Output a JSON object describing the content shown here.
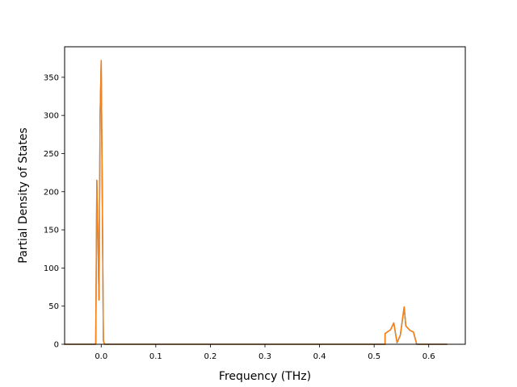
{
  "chart_data": {
    "type": "line",
    "title": "",
    "xlabel": "Frequency (THz)",
    "ylabel": "Partial Density of States",
    "xlim": [
      -0.067,
      0.667
    ],
    "ylim": [
      0,
      390
    ],
    "xticks": [
      0.0,
      0.1,
      0.2,
      0.3,
      0.4,
      0.5,
      0.6
    ],
    "xtick_labels": [
      "0.0",
      "0.1",
      "0.2",
      "0.3",
      "0.4",
      "0.5",
      "0.6"
    ],
    "yticks": [
      0,
      50,
      100,
      150,
      200,
      250,
      300,
      350
    ],
    "ytick_labels": [
      "0",
      "50",
      "100",
      "150",
      "200",
      "250",
      "300",
      "350"
    ],
    "grid": false,
    "legend": "none",
    "series": [
      {
        "color": "#1f77b4",
        "x": [
          -0.068,
          -0.01,
          -0.008,
          -0.004,
          -0.002,
          0.0,
          0.002,
          0.004,
          0.006,
          0.008,
          0.52,
          0.52,
          0.53,
          0.536,
          0.542,
          0.548,
          0.555,
          0.558,
          0.566,
          0.572,
          0.578,
          0.58,
          0.634
        ],
        "y": [
          0,
          0,
          215,
          58,
          300,
          372,
          190,
          5,
          0,
          0,
          0,
          14,
          19,
          28,
          2,
          12,
          49,
          24,
          18,
          16,
          0,
          0,
          0
        ]
      },
      {
        "color": "#ff7f0e",
        "x": [
          -0.068,
          -0.01,
          -0.008,
          -0.004,
          -0.002,
          0.0,
          0.002,
          0.004,
          0.006,
          0.008,
          0.52,
          0.52,
          0.53,
          0.536,
          0.542,
          0.548,
          0.555,
          0.558,
          0.566,
          0.572,
          0.578,
          0.58,
          0.634
        ],
        "y": [
          0,
          0,
          215,
          58,
          300,
          372,
          190,
          5,
          0,
          0,
          0,
          14,
          19,
          28,
          2,
          12,
          49,
          24,
          18,
          16,
          0,
          0,
          0
        ]
      }
    ]
  }
}
